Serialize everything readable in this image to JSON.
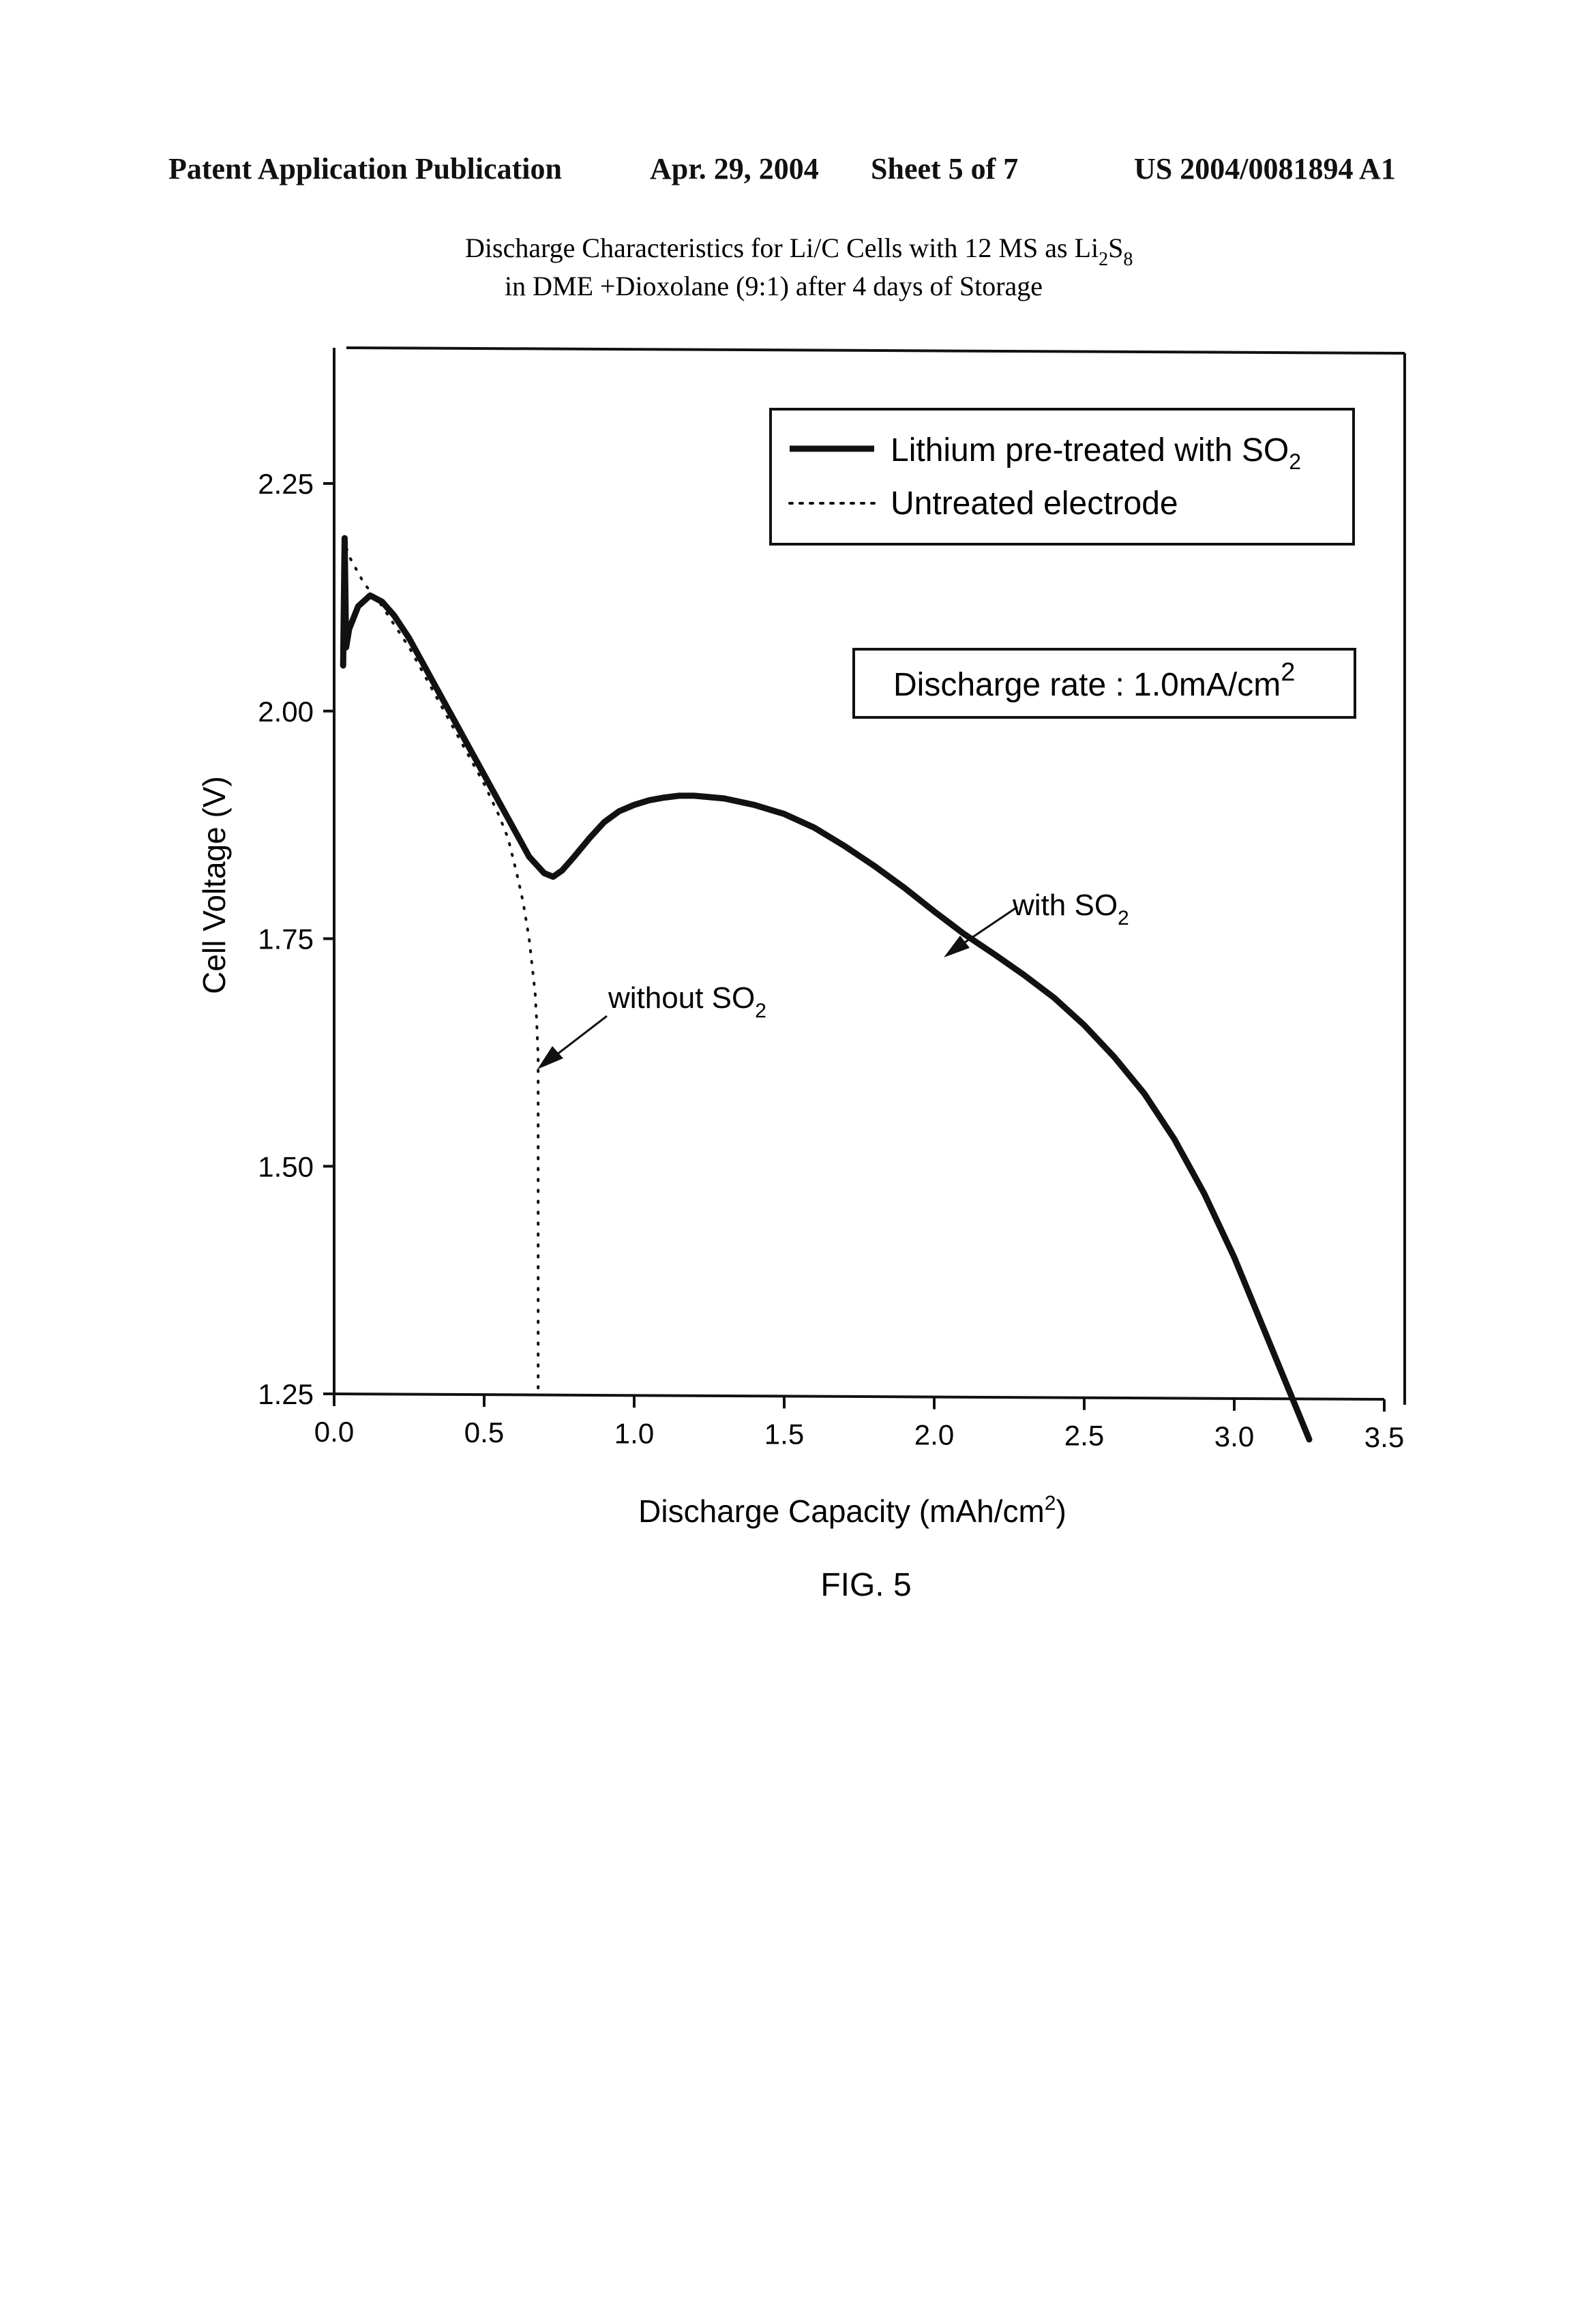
{
  "header": {
    "publication": "Patent Application Publication",
    "date": "Apr. 29, 2004",
    "sheet": "Sheet 5 of 7",
    "number": "US 2004/0081894 A1"
  },
  "figure_label": "FIG. 5",
  "chart_data": {
    "type": "line",
    "title_line1": "Discharge Characteristics for Li/C Cells with 12 MS as Li",
    "title_sub1": "2",
    "title_mid": "S",
    "title_sub2": "8",
    "title_line2": "in DME +Dioxolane (9:1) after  4 days of  Storage",
    "xlabel": "Discharge Capacity (mAh/cm",
    "xlabel_sup": "2",
    "xlabel_end": ")",
    "ylabel": "Cell Voltage (V)",
    "xlim": [
      0.0,
      3.5
    ],
    "ylim": [
      1.25,
      2.45
    ],
    "xticks": [
      0.0,
      0.5,
      1.0,
      1.5,
      2.0,
      2.5,
      3.0,
      3.5
    ],
    "xtick_labels": [
      "0.0",
      "0.5",
      "1.0",
      "1.5",
      "2.0",
      "2.5",
      "3.0",
      "3.5"
    ],
    "yticks": [
      1.25,
      1.5,
      1.75,
      2.0,
      2.25
    ],
    "ytick_labels": [
      "1.25",
      "1.50",
      "1.75",
      "2.00",
      "2.25"
    ],
    "grid": false,
    "legend_position": "top-right",
    "series": [
      {
        "name": "Lithium pre-treated with SO",
        "name_sub": "2",
        "style": "solid",
        "x": [
          0.03,
          0.035,
          0.04,
          0.05,
          0.08,
          0.12,
          0.16,
          0.2,
          0.25,
          0.3,
          0.35,
          0.4,
          0.45,
          0.5,
          0.55,
          0.6,
          0.65,
          0.7,
          0.73,
          0.76,
          0.8,
          0.85,
          0.9,
          0.95,
          1.0,
          1.05,
          1.1,
          1.15,
          1.2,
          1.3,
          1.4,
          1.5,
          1.6,
          1.7,
          1.8,
          1.9,
          2.0,
          2.1,
          2.2,
          2.3,
          2.4,
          2.5,
          2.6,
          2.7,
          2.8,
          2.9,
          3.0,
          3.05,
          3.1,
          3.15,
          3.2,
          3.25
        ],
        "y": [
          2.05,
          2.19,
          2.07,
          2.09,
          2.115,
          2.127,
          2.12,
          2.105,
          2.08,
          2.05,
          2.02,
          1.99,
          1.96,
          1.93,
          1.9,
          1.87,
          1.84,
          1.822,
          1.818,
          1.825,
          1.84,
          1.86,
          1.878,
          1.89,
          1.897,
          1.902,
          1.905,
          1.907,
          1.907,
          1.904,
          1.897,
          1.887,
          1.872,
          1.852,
          1.83,
          1.806,
          1.78,
          1.755,
          1.733,
          1.71,
          1.685,
          1.655,
          1.62,
          1.58,
          1.53,
          1.47,
          1.4,
          1.36,
          1.32,
          1.28,
          1.24,
          1.2
        ]
      },
      {
        "name": "Untreated electrode",
        "style": "dotted",
        "x": [
          0.03,
          0.05,
          0.1,
          0.15,
          0.2,
          0.25,
          0.3,
          0.35,
          0.4,
          0.45,
          0.5,
          0.55,
          0.58,
          0.61,
          0.63,
          0.65,
          0.66,
          0.67,
          0.675,
          0.68,
          0.68,
          0.68
        ],
        "y": [
          2.19,
          2.17,
          2.14,
          2.12,
          2.095,
          2.07,
          2.04,
          2.01,
          1.98,
          1.95,
          1.92,
          1.885,
          1.86,
          1.82,
          1.79,
          1.75,
          1.72,
          1.69,
          1.66,
          1.62,
          1.45,
          1.25
        ]
      }
    ],
    "annotations": {
      "discharge_rate": "Discharge rate : 1.0mA/cm",
      "discharge_rate_sup": "2",
      "with_so2": "with SO",
      "with_so2_sub": "2",
      "without_so2": "without SO",
      "without_so2_sub": "2"
    }
  }
}
